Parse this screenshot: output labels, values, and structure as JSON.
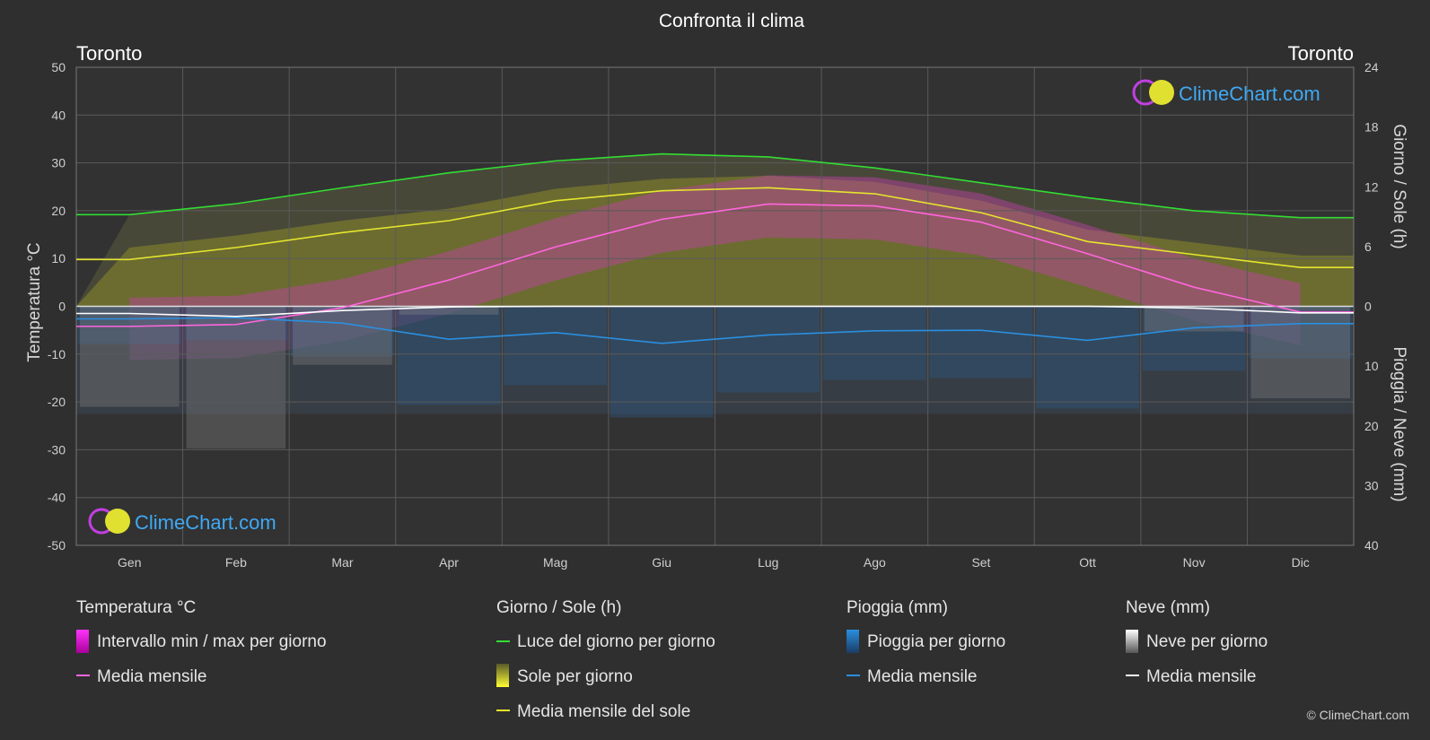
{
  "header": {
    "title": "Confronta il clima",
    "city_left": "Toronto",
    "city_right": "Toronto"
  },
  "axes": {
    "left_label": "Temperatura °C",
    "right_top_label": "Giorno / Sole (h)",
    "right_bottom_label": "Pioggia / Neve (mm)"
  },
  "logo": {
    "text": "ClimeChart.com"
  },
  "copyright": "© ClimeChart.com",
  "legend": {
    "temperature": {
      "heading": "Temperatura °C",
      "range": "Intervallo min / max per giorno",
      "mean": "Media mensile"
    },
    "daylight": {
      "heading": "Giorno / Sole (h)",
      "daylight": "Luce del giorno per giorno",
      "sun": "Sole per giorno",
      "sun_mean": "Media mensile del sole"
    },
    "rain": {
      "heading": "Pioggia (mm)",
      "rain": "Pioggia per giorno",
      "mean": "Media mensile"
    },
    "snow": {
      "heading": "Neve (mm)",
      "snow": "Neve per giorno",
      "mean": "Media mensile"
    }
  },
  "colors": {
    "daylight": "#33dd33",
    "sun": "#e5e52e",
    "temp": "#ff66dd",
    "rain": "#2a8fe0",
    "snow": "#ffffff",
    "bg": "#2f2f2f"
  },
  "chart_data": {
    "type": "line",
    "categories": [
      "Gen",
      "Feb",
      "Mar",
      "Apr",
      "Mag",
      "Giu",
      "Lug",
      "Ago",
      "Set",
      "Ott",
      "Nov",
      "Dic"
    ],
    "left_axis": {
      "ticks": [
        50,
        40,
        30,
        20,
        10,
        0,
        -10,
        -20,
        -30,
        -40,
        -50
      ],
      "ylim": [
        -50,
        50
      ]
    },
    "right_axis_hours": {
      "ticks": [
        24,
        18,
        12,
        6,
        0
      ],
      "ylim": [
        0,
        24
      ]
    },
    "right_axis_mm": {
      "ticks": [
        0,
        10,
        20,
        30,
        40
      ],
      "ylim": [
        0,
        40
      ]
    },
    "series": [
      {
        "name": "Luce del giorno per giorno",
        "unit": "h",
        "values": [
          9.2,
          10.3,
          11.9,
          13.4,
          14.6,
          15.3,
          15.0,
          13.9,
          12.4,
          10.9,
          9.6,
          8.9
        ]
      },
      {
        "name": "Media mensile del sole",
        "unit": "h",
        "values": [
          4.7,
          5.9,
          7.4,
          8.6,
          10.6,
          11.6,
          11.9,
          11.3,
          9.4,
          6.5,
          5.2,
          3.9
        ]
      },
      {
        "name": "Temperatura media mensile",
        "unit": "°C",
        "values": [
          -4.2,
          -3.8,
          -0.3,
          5.5,
          12.4,
          18.2,
          21.4,
          21.0,
          17.6,
          11.0,
          4.0,
          -1.2
        ]
      },
      {
        "name": "Pioggia media mensile",
        "unit": "mm",
        "values": [
          2.1,
          1.9,
          2.8,
          5.5,
          4.4,
          6.2,
          4.8,
          4.1,
          4.0,
          5.7,
          3.6,
          2.9
        ]
      },
      {
        "name": "Neve media mensile",
        "unit": "mm",
        "values": [
          1.2,
          1.7,
          0.7,
          0.1,
          0.0,
          0.0,
          0.0,
          0.0,
          0.0,
          0.0,
          0.3,
          1.1
        ]
      }
    ]
  }
}
